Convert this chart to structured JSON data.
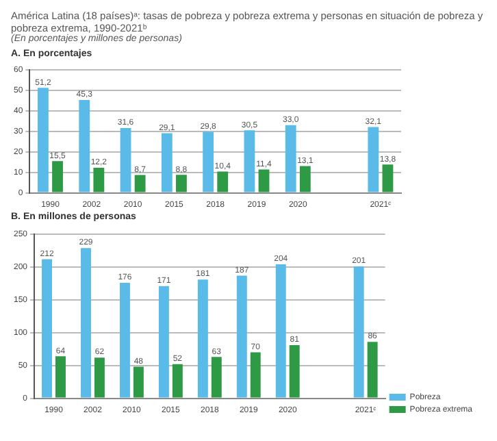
{
  "chart_data": [
    {
      "type": "bar",
      "title": "América Latina (18 países)ᵃ: tasas de pobreza y pobreza extrema y personas en situación de pobreza y pobreza extrema, 1990-2021ᵇ",
      "subtitle": "(En porcentajes y millones de personas)",
      "annotations": [
        "A. En porcentajes"
      ],
      "categories": [
        "1990",
        "2002",
        "2010",
        "2015",
        "2018",
        "2019",
        "2020",
        null,
        "2021ᶜ"
      ],
      "series": [
        {
          "color": "#5bbbe8",
          "values": [
            51.2,
            45.3,
            31.6,
            29.1,
            29.8,
            30.5,
            33.0,
            null,
            32.1
          ],
          "value_labels": [
            "51,2",
            "45,3",
            "31,6",
            "29,1",
            "29,8",
            "30,5",
            "33,0",
            null,
            "32,1"
          ]
        },
        {
          "color": "#2f9a45",
          "values": [
            15.5,
            12.2,
            8.7,
            8.8,
            10.4,
            11.4,
            13.1,
            null,
            13.8
          ],
          "value_labels": [
            "15,5",
            "12,2",
            "8,7",
            "8,8",
            "10,4",
            "11,4",
            "13,1",
            null,
            "13,8"
          ]
        }
      ],
      "ylim": [
        0,
        60
      ],
      "yticks": [
        0,
        10,
        20,
        30,
        40,
        50,
        60
      ],
      "grid": "y",
      "legend": false
    },
    {
      "type": "bar",
      "title": "B. En millones de personas",
      "categories": [
        "1990",
        "2002",
        "2010",
        "2015",
        "2018",
        "2019",
        "2020",
        null,
        "2021ᶜ"
      ],
      "series": [
        {
          "name": "Pobreza",
          "color": "#5bbbe8",
          "values": [
            212,
            229,
            176,
            171,
            181,
            187,
            204,
            null,
            201
          ]
        },
        {
          "name": "Pobreza extrema",
          "color": "#2f9a45",
          "values": [
            64,
            62,
            48,
            52,
            63,
            70,
            81,
            null,
            86
          ]
        }
      ],
      "ylim": [
        0,
        250
      ],
      "yticks": [
        0,
        50,
        100,
        150,
        200,
        250
      ],
      "grid": "y",
      "data_labels": true,
      "legend": "bottom right"
    }
  ]
}
